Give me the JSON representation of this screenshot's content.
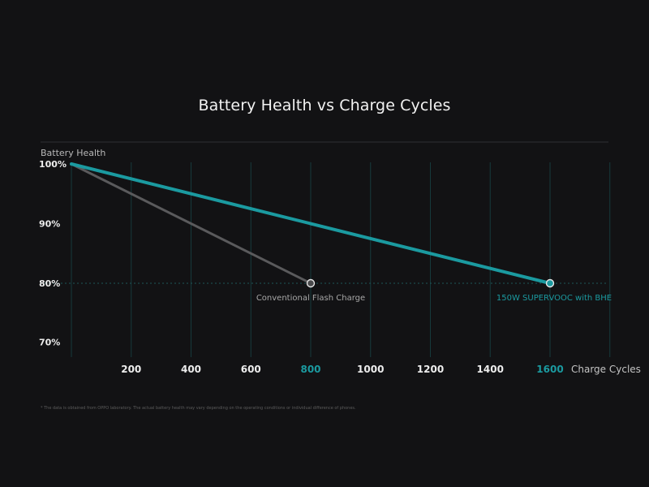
{
  "chart_data": {
    "type": "line",
    "title": "Battery Health vs Charge Cycles",
    "ylabel": "Battery Health",
    "xlabel": "Charge Cycles",
    "xlim": [
      0,
      1800
    ],
    "ylim": [
      70,
      100
    ],
    "x_ticks": [
      "200",
      "400",
      "600",
      "800",
      "1000",
      "1200",
      "1400",
      "1600"
    ],
    "x_tick_values": [
      200,
      400,
      600,
      800,
      1000,
      1200,
      1400,
      1600
    ],
    "highlighted_ticks": [
      800,
      1600
    ],
    "y_ticks": [
      "100%",
      "90%",
      "80%",
      "70%"
    ],
    "y_tick_values": [
      100,
      90,
      80,
      70
    ],
    "reference_line": 80,
    "series": [
      {
        "name": "Conventional Flash Charge",
        "color": "#5a5a5c",
        "x": [
          0,
          800
        ],
        "y": [
          100,
          80
        ]
      },
      {
        "name": "150W SUPERVOOC with BHE",
        "color": "#1b9aa0",
        "x": [
          0,
          1600
        ],
        "y": [
          100,
          80
        ]
      }
    ],
    "grid": true
  },
  "footnote": "* The data is obtained from OPPO laboratory. The actual battery health may vary depending on the operating conditions or individual difference of phones."
}
